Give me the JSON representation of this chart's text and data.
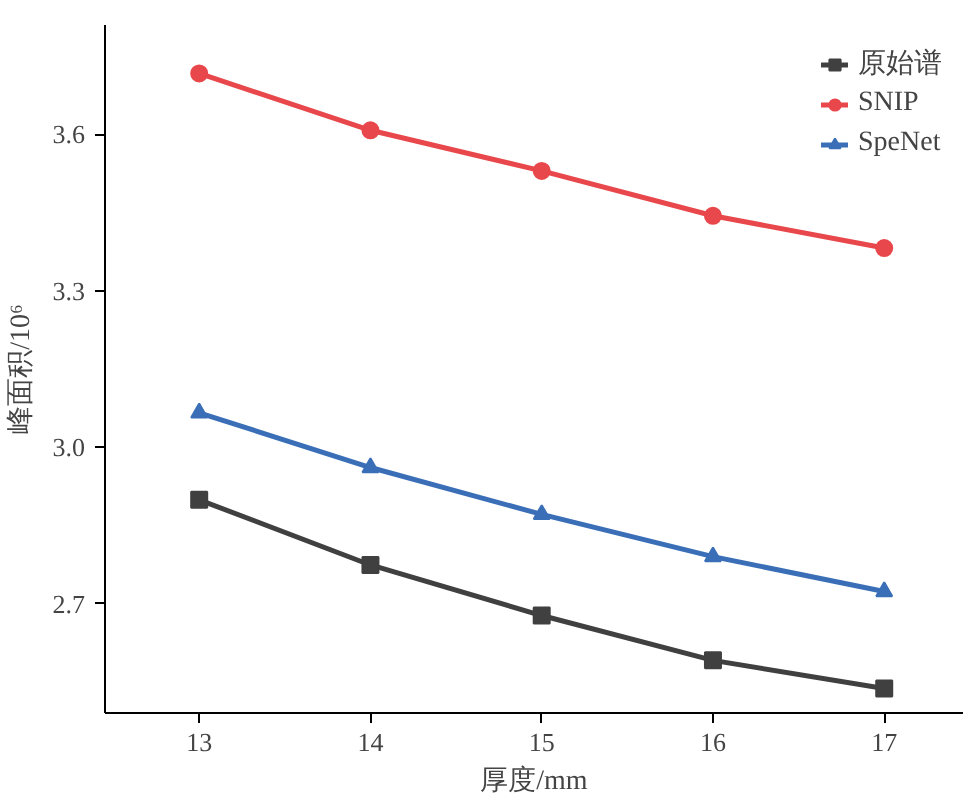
{
  "chart_data": {
    "type": "line",
    "xlabel": "厚度/mm",
    "ylabel": "峰面积/10⁶",
    "x": [
      13,
      14,
      15,
      16,
      17
    ],
    "series": [
      {
        "name": "原始谱",
        "color": "#404040",
        "marker": "square",
        "values": [
          2.899,
          2.774,
          2.677,
          2.591,
          2.537
        ]
      },
      {
        "name": "SNIP",
        "color": "#e8474b",
        "marker": "circle",
        "values": [
          3.717,
          3.608,
          3.53,
          3.444,
          3.382
        ]
      },
      {
        "name": "SpeNet",
        "color": "#3a6fb8",
        "marker": "triangle",
        "values": [
          3.066,
          2.961,
          2.871,
          2.79,
          2.723
        ]
      }
    ],
    "xlim": [
      12.45,
      17.46
    ],
    "ylim": [
      2.49,
      3.81
    ],
    "xticks": [
      13,
      14,
      15,
      16,
      17
    ],
    "yticks": [
      {
        "value": 2.7,
        "label": "2.7"
      },
      {
        "value": 3.0,
        "label": "3.0"
      },
      {
        "value": 3.3,
        "label": "3.3"
      },
      {
        "value": 3.6,
        "label": "3.6"
      }
    ],
    "grid": false,
    "legend": "top right",
    "line_style": "solid"
  }
}
